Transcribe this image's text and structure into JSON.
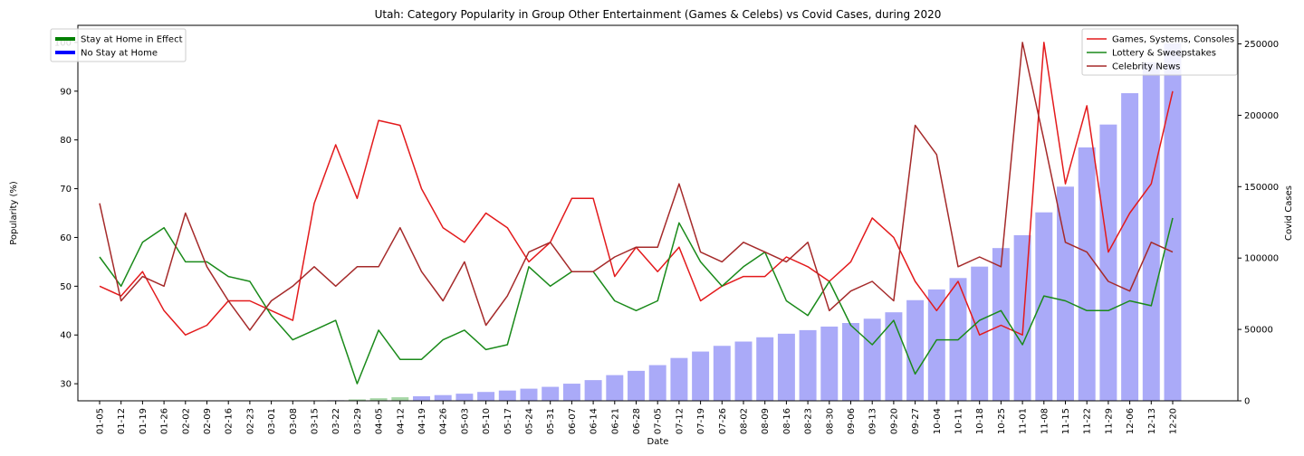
{
  "chart_data": {
    "type": "line",
    "title": "Utah: Category Popularity in Group Other Entertainment (Games & Celebs) vs Covid Cases, during 2020",
    "xlabel": "Date",
    "ylabel": "Popularity (%)",
    "y2label": "Covid Cases",
    "ylim": [
      26.5,
      103.5
    ],
    "y2lim": [
      0,
      263000
    ],
    "yticks": [
      30,
      40,
      50,
      60,
      70,
      80,
      90,
      100
    ],
    "y2ticks": [
      0,
      50000,
      100000,
      150000,
      200000,
      250000
    ],
    "categories": [
      "01-05",
      "01-12",
      "01-19",
      "01-26",
      "02-02",
      "02-09",
      "02-16",
      "02-23",
      "03-01",
      "03-08",
      "03-15",
      "03-22",
      "03-29",
      "04-05",
      "04-12",
      "04-19",
      "04-26",
      "05-03",
      "05-10",
      "05-17",
      "05-24",
      "05-31",
      "06-07",
      "06-14",
      "06-21",
      "06-28",
      "07-05",
      "07-12",
      "07-19",
      "07-26",
      "08-02",
      "08-09",
      "08-16",
      "08-23",
      "08-30",
      "09-06",
      "09-13",
      "09-20",
      "09-27",
      "10-04",
      "10-11",
      "10-18",
      "10-25",
      "11-01",
      "11-08",
      "11-15",
      "11-22",
      "11-29",
      "12-06",
      "12-13",
      "12-20"
    ],
    "series": [
      {
        "name": "Games, Systems, Consoles",
        "color": "#e31a1c",
        "values": [
          50,
          48,
          53,
          45,
          40,
          42,
          47,
          47,
          45,
          43,
          67,
          79,
          68,
          84,
          83,
          70,
          62,
          59,
          65,
          62,
          55,
          59,
          68,
          68,
          52,
          58,
          53,
          58,
          47,
          50,
          52,
          52,
          56,
          54,
          51,
          55,
          64,
          60,
          51,
          45,
          51,
          40,
          42,
          40,
          100,
          71,
          87,
          57,
          65,
          71,
          90
        ]
      },
      {
        "name": "Lottery & Sweepstakes",
        "color": "#1a8a1a",
        "values": [
          56,
          50,
          59,
          62,
          55,
          55,
          52,
          51,
          44,
          39,
          41,
          43,
          30,
          41,
          35,
          35,
          39,
          41,
          37,
          38,
          54,
          50,
          53,
          53,
          47,
          45,
          47,
          63,
          55,
          50,
          54,
          57,
          47,
          44,
          51,
          42,
          38,
          43,
          32,
          39,
          39,
          43,
          45,
          38,
          48,
          47,
          45,
          45,
          47,
          46,
          64
        ]
      },
      {
        "name": "Celebrity News",
        "color": "#a52a2a",
        "values": [
          67,
          47,
          52,
          50,
          65,
          54,
          47,
          41,
          47,
          50,
          54,
          50,
          54,
          54,
          62,
          53,
          47,
          55,
          42,
          48,
          57,
          59,
          53,
          53,
          56,
          58,
          58,
          71,
          57,
          55,
          59,
          57,
          55,
          59,
          45,
          49,
          51,
          47,
          83,
          77,
          54,
          56,
          54,
          100,
          80,
          59,
          57,
          51,
          49,
          59,
          57
        ]
      }
    ],
    "bars": {
      "name": "Covid Cases",
      "color": "#aaaaf8",
      "values": [
        0,
        0,
        0,
        0,
        0,
        0,
        0,
        0,
        0,
        0,
        100,
        400,
        1000,
        1800,
        2500,
        3200,
        4000,
        5000,
        6200,
        7200,
        8500,
        9800,
        12000,
        14500,
        18000,
        21000,
        25000,
        30000,
        34500,
        38500,
        41500,
        44500,
        47000,
        49500,
        52000,
        54500,
        57500,
        62000,
        70500,
        78000,
        86000,
        94000,
        107000,
        116000,
        132000,
        150000,
        177500,
        193500,
        215500,
        237000,
        250500
      ]
    },
    "legend_left": {
      "position": "top-left",
      "items": [
        {
          "label": "Stay at Home in Effect",
          "color": "#008000"
        },
        {
          "label": "No Stay at Home",
          "color": "#0000ff"
        }
      ]
    },
    "legend_right": {
      "position": "top-right",
      "items": [
        {
          "label": "Games, Systems, Consoles",
          "color": "#e31a1c"
        },
        {
          "label": "Lottery & Sweepstakes",
          "color": "#1a8a1a"
        },
        {
          "label": "Celebrity News",
          "color": "#a52a2a"
        }
      ]
    },
    "stay_home_period": [
      "03-29",
      "04-12"
    ]
  }
}
